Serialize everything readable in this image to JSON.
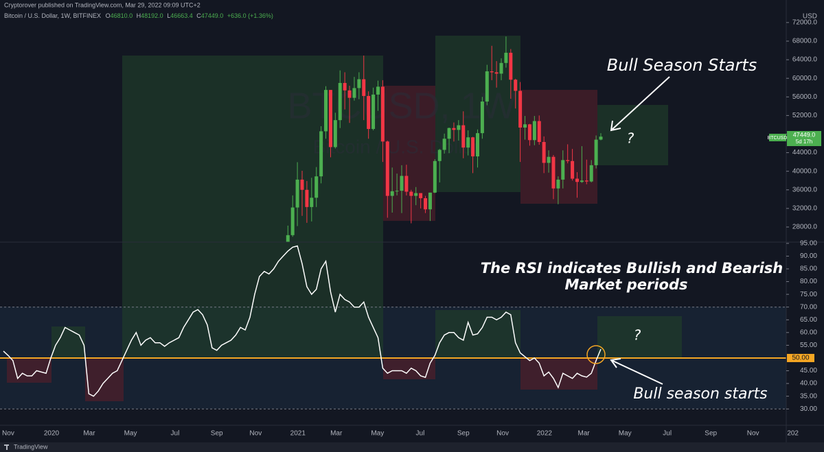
{
  "header": {
    "published": "Cryptorover published on TradingView.com, Mar 29, 2022 09:09 UTC+2",
    "symbol": "Bitcoin / U.S. Dollar, 1W, BITFINEX",
    "ohlc": [
      {
        "label": "O",
        "value": "46810.0"
      },
      {
        "label": "H",
        "value": "48192.0"
      },
      {
        "label": "L",
        "value": "46663.4"
      },
      {
        "label": "C",
        "value": "47449.0"
      }
    ],
    "change": "+636.0 (+1.36%)"
  },
  "watermark": {
    "symbol": "BTCUSD, 1W",
    "name": "Bitcoin / U.S. Dollar"
  },
  "annotations": {
    "price_title": "Bull Season Starts",
    "price_question": "?",
    "rsi_line1": "The RSI indicates Bullish and Bearish",
    "rsi_line2": "Market periods",
    "rsi_question": "?",
    "rsi_title": "Bull season starts"
  },
  "price_label": {
    "symbol": "BTCUSD",
    "value": "47449.0",
    "countdown": "5d 17h"
  },
  "x_axis": {
    "xlim": [
      -0.72,
      165.1
    ],
    "xticks": [
      {
        "value": 1.01,
        "label": "Nov"
      },
      {
        "value": 10.14,
        "label": "2020"
      },
      {
        "value": 18.1,
        "label": "Mar"
      },
      {
        "value": 26.8,
        "label": "May"
      },
      {
        "value": 36.2,
        "label": "Jul"
      },
      {
        "value": 45.0,
        "label": "Sep"
      },
      {
        "value": 53.2,
        "label": "Nov"
      },
      {
        "value": 62.1,
        "label": "2021"
      },
      {
        "value": 70.2,
        "label": "Mar"
      },
      {
        "value": 78.9,
        "label": "May"
      },
      {
        "value": 87.9,
        "label": "Jul"
      },
      {
        "value": 97.0,
        "label": "Sep"
      },
      {
        "value": 105.3,
        "label": "Nov"
      },
      {
        "value": 114.1,
        "label": "2022"
      },
      {
        "value": 122.4,
        "label": "Mar"
      },
      {
        "value": 131.1,
        "label": "May"
      },
      {
        "value": 140.0,
        "label": "Jul"
      },
      {
        "value": 149.2,
        "label": "Sep"
      },
      {
        "value": 158.1,
        "label": "Nov"
      },
      {
        "value": 166.5,
        "label": "202"
      }
    ]
  },
  "chart_data": [
    {
      "type": "candlestick",
      "unit": "USD",
      "up_color": "#4caf50",
      "down_color": "#f23645",
      "ylim": [
        24750,
        73900
      ],
      "yticks": [
        {
          "value": 28000,
          "label": "28000.0"
        },
        {
          "value": 32000,
          "label": "32000.0"
        },
        {
          "value": 36000,
          "label": "36000.0"
        },
        {
          "value": 40000,
          "label": "40000.0"
        },
        {
          "value": 44000,
          "label": "44000.0"
        },
        {
          "value": 48000,
          "label": "48000.0"
        },
        {
          "value": 52000,
          "label": "52000.0"
        },
        {
          "value": 56000,
          "label": "56000.0"
        },
        {
          "value": 60000,
          "label": "60000.0"
        },
        {
          "value": 64000,
          "label": "64000.0"
        },
        {
          "value": 68000,
          "label": "68000.0"
        },
        {
          "value": 72000,
          "label": "72000.0"
        }
      ],
      "x": [
        60,
        61,
        62,
        63,
        64,
        65,
        66,
        67,
        68,
        69,
        70,
        71,
        72,
        73,
        74,
        75,
        76,
        77,
        78,
        79,
        80,
        81,
        82,
        83,
        84,
        85,
        86,
        87,
        88,
        89,
        90,
        91,
        92,
        93,
        94,
        95,
        96,
        97,
        98,
        99,
        100,
        101,
        102,
        103,
        104,
        105,
        106,
        107,
        108,
        109,
        110,
        111,
        112,
        113,
        114,
        115,
        116,
        117,
        118,
        119,
        120,
        121,
        122,
        123,
        124,
        125,
        126
      ],
      "open": [
        23470,
        26250,
        32200,
        38200,
        36000,
        32300,
        34300,
        38900,
        48600,
        57500,
        45200,
        51000,
        59000,
        57400,
        55800,
        57900,
        59800,
        56200,
        49100,
        56500,
        58200,
        46400,
        34700,
        35700,
        35800,
        39000,
        35600,
        34700,
        35300,
        34200,
        31800,
        35400,
        42200,
        44600,
        47000,
        49300,
        48900,
        49900,
        45100,
        47300,
        43200,
        48200,
        55000,
        61500,
        61300,
        61000,
        63300,
        65500,
        59700,
        57300,
        49400,
        50100,
        46700,
        50800,
        46300,
        41800,
        43100,
        36300,
        38200,
        42400,
        42200,
        38400,
        37700,
        38000,
        37800,
        41300,
        46810
      ],
      "high": [
        28300,
        34800,
        41950,
        40100,
        37900,
        38600,
        40900,
        49700,
        58300,
        57500,
        52600,
        61700,
        61300,
        58400,
        60300,
        61300,
        64900,
        57200,
        58000,
        59500,
        59600,
        46600,
        40800,
        39500,
        41300,
        41400,
        36000,
        36600,
        35300,
        34700,
        35400,
        42600,
        44800,
        48100,
        49400,
        50500,
        51000,
        52900,
        48800,
        47400,
        49000,
        56000,
        62900,
        67000,
        63700,
        64300,
        69000,
        66300,
        59900,
        59200,
        51900,
        50200,
        51900,
        52000,
        47500,
        44500,
        43500,
        38900,
        44500,
        45800,
        44800,
        39800,
        45400,
        42500,
        42400,
        47700,
        48192
      ],
      "low": [
        22350,
        25900,
        28200,
        30400,
        28900,
        29200,
        32300,
        37400,
        47000,
        43000,
        44900,
        49300,
        53300,
        50400,
        55200,
        55500,
        51000,
        47000,
        48800,
        53000,
        42000,
        30000,
        31100,
        34800,
        31000,
        34800,
        28800,
        32700,
        32000,
        31000,
        29300,
        35300,
        37600,
        43800,
        43900,
        46400,
        46600,
        42800,
        43400,
        39600,
        40800,
        47000,
        54200,
        59600,
        58000,
        59600,
        62300,
        55600,
        53500,
        42000,
        46800,
        45500,
        45600,
        45700,
        39600,
        39700,
        34000,
        32900,
        36300,
        41700,
        38000,
        34300,
        37500,
        37200,
        37600,
        40600,
        46663.4
      ],
      "close": [
        26250,
        32200,
        38200,
        36000,
        32300,
        34300,
        38900,
        48600,
        57500,
        45200,
        51000,
        59000,
        57400,
        55800,
        57900,
        59800,
        56200,
        49100,
        56500,
        58200,
        46400,
        34700,
        35700,
        35800,
        39000,
        35600,
        34700,
        35300,
        34200,
        31800,
        35400,
        42200,
        44600,
        47000,
        49300,
        48900,
        49900,
        45100,
        47300,
        43200,
        48200,
        55000,
        61500,
        61300,
        61000,
        63300,
        65500,
        59700,
        57300,
        49400,
        50100,
        46700,
        50800,
        46300,
        41800,
        43100,
        36300,
        38200,
        42400,
        42200,
        38400,
        37700,
        38000,
        37800,
        41300,
        46800,
        47449
      ]
    },
    {
      "type": "line",
      "color": "#ffffff",
      "ylim": [
        23.6,
        95.5
      ],
      "yticks": [
        {
          "value": 30,
          "label": "30.00"
        },
        {
          "value": 35,
          "label": "35.00"
        },
        {
          "value": 40,
          "label": "40.00"
        },
        {
          "value": 45,
          "label": "45.00"
        },
        {
          "value": 55,
          "label": "55.00"
        },
        {
          "value": 60,
          "label": "60.00"
        },
        {
          "value": 65,
          "label": "65.00"
        },
        {
          "value": 70,
          "label": "70.00"
        },
        {
          "value": 75,
          "label": "75.00"
        },
        {
          "value": 80,
          "label": "80.00"
        },
        {
          "value": 85,
          "label": "85.00"
        },
        {
          "value": 90,
          "label": "90.00"
        },
        {
          "value": 95,
          "label": "95.00"
        }
      ],
      "levels": [
        70,
        30
      ],
      "hline": {
        "value": 50,
        "label": "50.00",
        "color": "#f5a623"
      },
      "x": [
        0,
        1,
        2,
        3,
        4,
        5,
        6,
        7,
        8,
        9,
        10,
        11,
        12,
        13,
        14,
        15,
        16,
        17,
        18,
        19,
        20,
        21,
        22,
        23,
        24,
        25,
        26,
        27,
        28,
        29,
        30,
        31,
        32,
        33,
        34,
        35,
        36,
        37,
        38,
        39,
        40,
        41,
        42,
        43,
        44,
        45,
        46,
        47,
        48,
        49,
        50,
        51,
        52,
        53,
        54,
        55,
        56,
        57,
        58,
        59,
        60,
        61,
        62,
        63,
        64,
        65,
        66,
        67,
        68,
        69,
        70,
        71,
        72,
        73,
        74,
        75,
        76,
        77,
        78,
        79,
        80,
        81,
        82,
        83,
        84,
        85,
        86,
        87,
        88,
        89,
        90,
        91,
        92,
        93,
        94,
        95,
        96,
        97,
        98,
        99,
        100,
        101,
        102,
        103,
        104,
        105,
        106,
        107,
        108,
        109,
        110,
        111,
        112,
        113,
        114,
        115,
        116,
        117,
        118,
        119,
        120,
        121,
        122,
        123,
        124,
        125,
        126
      ],
      "values": [
        52.7,
        51,
        49,
        42,
        44,
        43,
        43,
        45,
        44.5,
        44,
        50,
        55,
        58,
        62,
        61,
        60,
        59,
        55,
        36,
        35,
        37,
        40,
        42,
        44,
        45,
        49,
        53,
        57,
        60,
        55,
        57,
        58,
        56,
        56,
        54.6,
        56,
        57,
        58,
        62,
        65,
        68,
        69,
        67,
        63,
        54,
        53,
        55,
        56,
        57,
        59,
        62,
        61,
        66,
        75,
        82,
        84,
        83,
        85,
        88,
        90,
        92,
        93.5,
        94,
        87,
        78,
        75,
        77,
        85,
        88,
        76,
        68,
        75,
        73,
        72,
        70,
        70,
        72,
        66,
        62,
        58,
        46,
        44,
        45,
        45,
        45,
        44,
        46,
        45,
        43,
        42.4,
        48,
        51,
        56,
        59,
        60,
        60,
        58,
        57,
        64,
        59,
        59.5,
        62,
        66,
        66,
        65,
        66,
        68,
        67,
        56,
        52,
        50.5,
        49,
        50,
        48,
        43,
        44.5,
        42,
        38.4,
        44,
        43,
        42,
        44,
        43,
        42.5,
        44,
        49,
        53.5
      ]
    }
  ],
  "footer": {
    "brand": "TradingView"
  }
}
